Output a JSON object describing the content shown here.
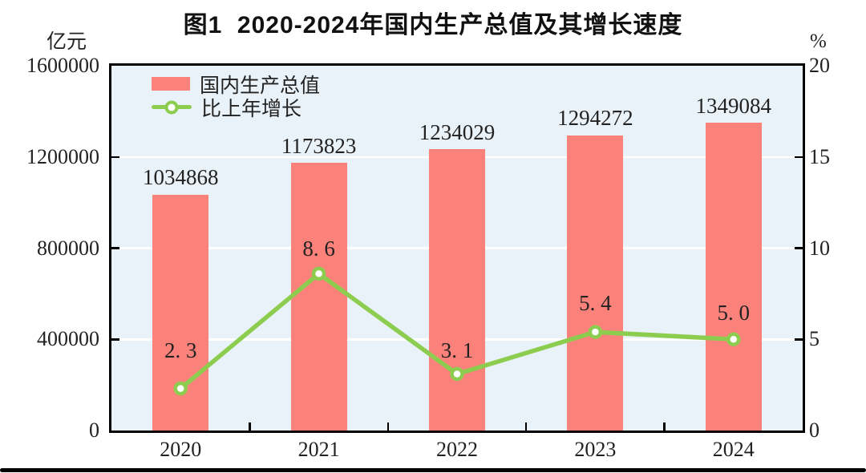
{
  "title": "图1  2020-2024年国内生产总值及其增长速度",
  "left_axis": {
    "unit": "亿元",
    "tick_labels": [
      "1600000",
      "1200000",
      "800000",
      "400000",
      "0"
    ]
  },
  "right_axis": {
    "unit": "%",
    "tick_labels": [
      "20",
      "15",
      "10",
      "5",
      "0"
    ]
  },
  "chart_data": {
    "type": "bar+line combo",
    "categories": [
      "2020",
      "2021",
      "2022",
      "2023",
      "2024"
    ],
    "series": [
      {
        "name": "国内生产总值",
        "type": "bar",
        "axis": "left",
        "unit": "亿元",
        "values": [
          1034868,
          1173823,
          1234029,
          1294272,
          1349084
        ],
        "data_labels": [
          "1034868",
          "1173823",
          "1234029",
          "1294272",
          "1349084"
        ],
        "color": "#fa827a"
      },
      {
        "name": "比上年增长",
        "type": "line",
        "axis": "right",
        "unit": "%",
        "values": [
          2.3,
          8.6,
          3.1,
          5.4,
          5.0
        ],
        "data_labels": [
          "2. 3",
          "8. 6",
          "3. 1",
          "5. 4",
          "5. 0"
        ],
        "color": "#8ccd50",
        "marker": "circle-white-fill"
      }
    ],
    "left_ylim": [
      0,
      1600000
    ],
    "right_ylim": [
      0,
      20
    ],
    "left_tick_step": 400000,
    "right_tick_step": 5,
    "grid": "white horizontal lines at left-axis ticks",
    "legend_position": "top-left inside plot",
    "plot_bg": "#e9f2f8"
  },
  "colors": {
    "bar": "#fa827a",
    "line": "#8ccd50",
    "marker_fill": "#ffffff",
    "plot_bg": "#e9f2f8",
    "grid": "#ffffff",
    "border": "#000000",
    "text": "#222222"
  }
}
